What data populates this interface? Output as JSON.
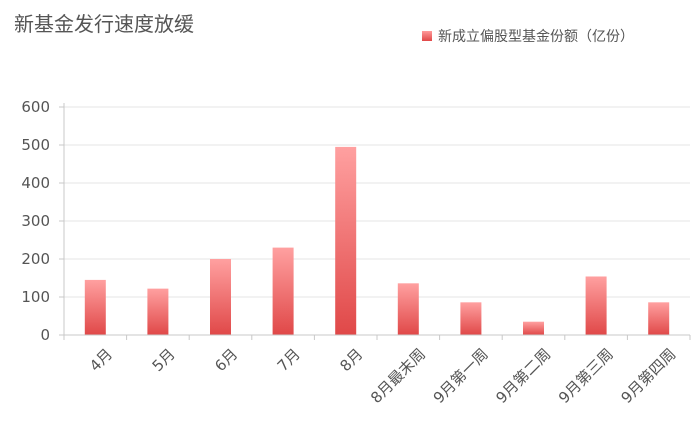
{
  "chart_data": {
    "type": "bar",
    "title": "新基金发行速度放缓",
    "categories": [
      "4月",
      "5月",
      "6月",
      "7月",
      "8月",
      "8月最末周",
      "9月第一周",
      "9月第二周",
      "9月第三周",
      "9月第四周"
    ],
    "series": [
      {
        "name": "新成立偏股型基金份额（亿份）",
        "values": [
          145,
          122,
          200,
          230,
          495,
          136,
          86,
          35,
          154,
          86
        ]
      }
    ],
    "ylim": [
      0,
      600
    ],
    "yticks": [
      0,
      100,
      200,
      300,
      400,
      500,
      600
    ],
    "grid": true,
    "legend_position": "top-right",
    "colors": {
      "bar_top": "#ffa0a0",
      "bar_bottom": "#e04848",
      "grid": "#e6e6e6",
      "axis": "#c8c8c8"
    }
  }
}
